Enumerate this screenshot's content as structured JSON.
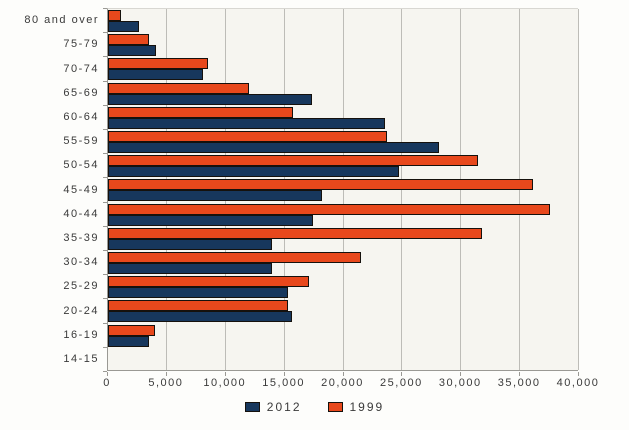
{
  "chart_data": {
    "type": "bar",
    "orientation": "horizontal",
    "title": "",
    "xlabel": "",
    "ylabel": "",
    "categories": [
      "80 and over",
      "75-79",
      "70-74",
      "65-69",
      "60-64",
      "55-59",
      "50-54",
      "45-49",
      "40-44",
      "35-39",
      "30-34",
      "25-29",
      "20-24",
      "16-19",
      "14-15"
    ],
    "series": [
      {
        "name": "2012",
        "color": "#17375d",
        "values": [
          2600,
          4100,
          8100,
          17300,
          23500,
          28100,
          24700,
          18200,
          17400,
          13900,
          13900,
          15300,
          15600,
          3500,
          0
        ]
      },
      {
        "name": "1999",
        "color": "#e8481c",
        "values": [
          1100,
          3500,
          8500,
          12000,
          15700,
          23700,
          31400,
          36100,
          37500,
          31800,
          21500,
          17100,
          15300,
          4000,
          0
        ]
      }
    ],
    "bar_order_top_to_bottom": [
      "1999",
      "2012"
    ],
    "xlim": [
      0,
      40000
    ],
    "x_ticks": [
      0,
      5000,
      10000,
      15000,
      20000,
      25000,
      30000,
      35000,
      40000
    ],
    "x_tick_labels": [
      "0",
      "5,000",
      "10,000",
      "15,000",
      "20,000",
      "25,000",
      "30,000",
      "35,000",
      "40,000"
    ],
    "grid": true,
    "legend_position": "bottom-center",
    "legend": [
      {
        "label": "2012",
        "color": "#17375d"
      },
      {
        "label": "1999",
        "color": "#e8481c"
      }
    ]
  },
  "colors": {
    "plot_background": "#f6f5f0",
    "page_background": "#fdfdfb",
    "gridline": "#bdbcb7",
    "axis": "#9a9994",
    "text": "#3a3a3a",
    "series_2012": "#17375d",
    "series_1999": "#e8481c"
  }
}
